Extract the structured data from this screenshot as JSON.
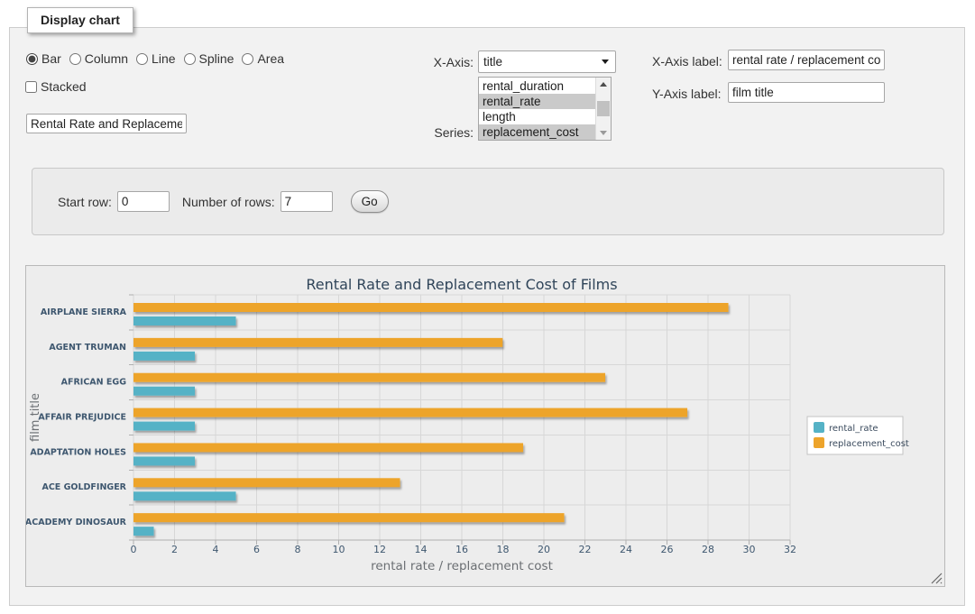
{
  "window": {
    "legend": "Display chart"
  },
  "chart_controls": {
    "type_radios": [
      {
        "label": "Bar",
        "selected": true
      },
      {
        "label": "Column",
        "selected": false
      },
      {
        "label": "Line",
        "selected": false
      },
      {
        "label": "Spline",
        "selected": false
      },
      {
        "label": "Area",
        "selected": false
      }
    ],
    "stacked": {
      "label": "Stacked",
      "checked": false
    },
    "chart_title_value": "Rental Rate and Replacement Cost of Films",
    "x_axis": {
      "label": "X-Axis:",
      "selected_option": "title"
    },
    "series": {
      "label": "Series:",
      "options": [
        {
          "label": "rental_duration",
          "selected": false
        },
        {
          "label": "rental_rate",
          "selected": true
        },
        {
          "label": "length",
          "selected": false
        },
        {
          "label": "replacement_cost",
          "selected": true
        }
      ]
    },
    "x_axis_label": {
      "label": "X-Axis label:",
      "value": "rental rate / replacement cost"
    },
    "y_axis_label": {
      "label": "Y-Axis label:",
      "value": "film title"
    }
  },
  "row_controls": {
    "start_row": {
      "label": "Start row:",
      "value": "0"
    },
    "number_of_rows": {
      "label": "Number of rows:",
      "value": "7"
    },
    "go_button": "Go"
  },
  "icons": {
    "select_dropdown": "black down triangle",
    "scrollbar_up": "up triangle",
    "scrollbar_down": "down triangle",
    "resize_grip": "diagonal grip lines"
  },
  "colors": {
    "rental_rate": "#55B2C6",
    "replacement_cost": "#EDA42B",
    "selected_option_bg": "#CACACA",
    "chart_text": "#3E576F",
    "panel_bg": "#EDEDED"
  },
  "chart_data": {
    "type": "bar",
    "title": "Rental Rate and Replacement Cost of Films",
    "xlabel": "rental rate / replacement cost",
    "ylabel": "film title",
    "categories": [
      "AIRPLANE SIERRA",
      "AGENT TRUMAN",
      "AFRICAN EGG",
      "AFFAIR PREJUDICE",
      "ADAPTATION HOLES",
      "ACE GOLDFINGER",
      "ACADEMY DINOSAUR"
    ],
    "series": [
      {
        "name": "rental_rate",
        "color": "#55B2C6",
        "values": [
          4.99,
          2.99,
          2.99,
          2.99,
          2.99,
          4.99,
          0.99
        ]
      },
      {
        "name": "replacement_cost",
        "color": "#EDA42B",
        "values": [
          28.99,
          17.99,
          22.99,
          26.99,
          18.99,
          12.99,
          20.99
        ]
      }
    ],
    "xlim": [
      0,
      32
    ],
    "xtick_step": 2,
    "grid": true,
    "legend_position": "right"
  }
}
